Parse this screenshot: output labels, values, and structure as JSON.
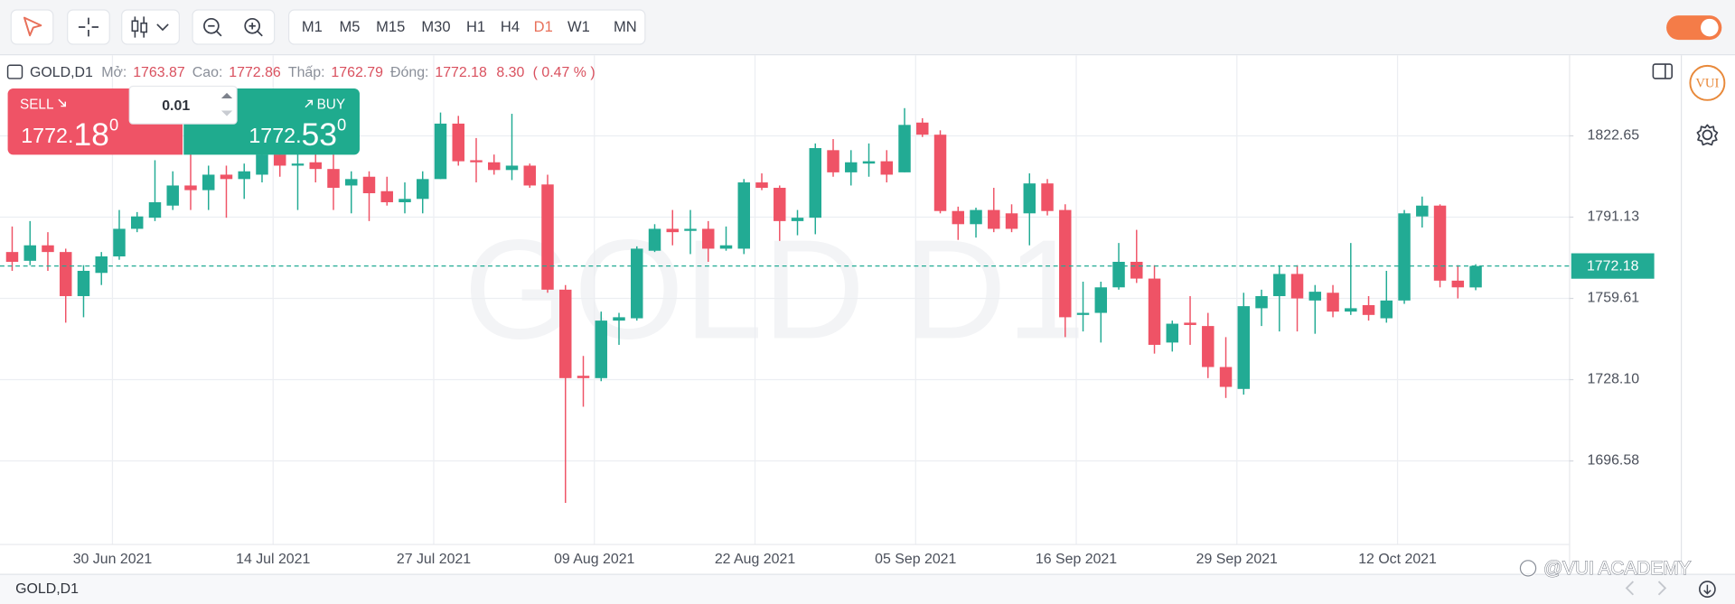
{
  "toolbar": {
    "timeframes": [
      "M1",
      "M5",
      "M15",
      "M30",
      "H1",
      "H4",
      "D1",
      "W1",
      "MN"
    ]
  },
  "header": {
    "symbol": "GOLD,D1",
    "open_label": "Mở:",
    "high_label": "Cao:",
    "low_label": "Thấp:",
    "close_label": "Đóng:",
    "change": "8.30",
    "change_pct": "( 0.47 % )"
  },
  "trade_panel": {
    "sell": "SELL",
    "buy": "BUY",
    "volume": "0.01",
    "sell_price": {
      "base": "1772.",
      "pips": "18",
      "fraction": "0"
    },
    "buy_price": {
      "base": "1772.",
      "pips": "53",
      "fraction": "0"
    }
  },
  "watermark": "GOLD D1",
  "logo": "VUI",
  "credit": "@VUI ACADEMY",
  "footer": {
    "symbol": "GOLD,D1"
  },
  "chart_data": {
    "type": "candlestick",
    "up_color": "#22ab94",
    "down_color": "#ef5366",
    "grid": true,
    "ylim": [
      1664.4,
      1853.9
    ],
    "yticks": [
      1822.65,
      1791.13,
      1759.61,
      {
        "value": 1728.1,
        "label": "1728.10"
      },
      1696.58
    ],
    "categories": [
      null,
      null,
      null,
      null,
      null,
      "30 Jun 2021",
      null,
      null,
      null,
      null,
      null,
      null,
      null,
      null,
      "14 Jul 2021",
      null,
      null,
      null,
      null,
      null,
      null,
      null,
      null,
      "27 Jul 2021",
      null,
      null,
      null,
      null,
      null,
      null,
      null,
      null,
      "09 Aug 2021",
      null,
      null,
      null,
      null,
      null,
      null,
      null,
      null,
      "22 Aug 2021",
      null,
      null,
      null,
      null,
      null,
      null,
      null,
      null,
      "05 Sep 2021",
      null,
      null,
      null,
      null,
      null,
      null,
      null,
      null,
      "16 Sep 2021",
      null,
      null,
      null,
      null,
      null,
      null,
      null,
      null,
      "29 Sep 2021",
      null,
      null,
      null,
      null,
      null,
      null,
      null,
      null,
      "12 Oct 2021",
      null,
      null,
      null,
      null,
      null
    ],
    "open": [
      1777.6,
      1774.2,
      1780.2,
      1777.6,
      1760.5,
      1769.5,
      1775.9,
      1786.6,
      1790.9,
      1795.6,
      1803.4,
      1801.6,
      1807.6,
      1805.9,
      1807.6,
      1815.4,
      1811.1,
      1812.4,
      1809.8,
      1803.4,
      1806.8,
      1801.2,
      1796.9,
      1798.2,
      1805.9,
      1827.4,
      1813.2,
      1812.4,
      1809.4,
      1811.1,
      1803.8,
      1763.0,
      1729.6,
      1728.7,
      1751.0,
      1751.9,
      1778.1,
      1786.6,
      1785.8,
      1786.6,
      1778.9,
      1778.9,
      1804.6,
      1802.5,
      1789.6,
      1790.9,
      1817.1,
      1808.5,
      1811.9,
      1812.8,
      1808.5,
      1827.8,
      1823.1,
      1793.5,
      1788.4,
      1793.9,
      1792.6,
      1792.6,
      1804.2,
      1793.9,
      1753.2,
      1754.0,
      1763.9,
      1773.8,
      1767.3,
      1742.5,
      1750.2,
      1748.9,
      1733.0,
      1724.5,
      1755.8,
      1760.5,
      1769.1,
      1758.8,
      1761.8,
      1754.5,
      1757.0,
      1751.9,
      1758.8,
      1791.4,
      1795.6,
      1766.5,
      1763.87
    ],
    "high": [
      1787.5,
      1789.6,
      1785.3,
      1778.9,
      1772.5,
      1777.6,
      1793.9,
      1793.1,
      1813.2,
      1808.9,
      1817.5,
      1811.1,
      1811.1,
      1811.9,
      1819.7,
      1819.7,
      1817.5,
      1819.7,
      1815.4,
      1808.9,
      1808.9,
      1806.8,
      1804.6,
      1808.9,
      1831.7,
      1830.4,
      1821.8,
      1815.4,
      1831.2,
      1811.9,
      1807.6,
      1764.8,
      1737.3,
      1754.5,
      1754.0,
      1779.8,
      1788.4,
      1793.9,
      1793.9,
      1789.6,
      1787.5,
      1805.9,
      1808.1,
      1803.4,
      1793.9,
      1819.7,
      1821.4,
      1817.1,
      1819.7,
      1817.1,
      1833.4,
      1829.5,
      1824.8,
      1795.2,
      1794.8,
      1802.5,
      1796.1,
      1808.1,
      1805.9,
      1796.1,
      1766.1,
      1766.1,
      1781.1,
      1786.2,
      1772.5,
      1751.0,
      1760.5,
      1754.0,
      1744.6,
      1761.8,
      1763.0,
      1772.5,
      1772.5,
      1764.8,
      1764.8,
      1781.1,
      1760.5,
      1770.3,
      1793.9,
      1799.1,
      1796.1,
      1772.5,
      1772.86
    ],
    "low": [
      1770.3,
      1772.5,
      1770.3,
      1750.2,
      1752.3,
      1764.8,
      1774.6,
      1785.3,
      1789.6,
      1793.9,
      1793.9,
      1793.9,
      1790.9,
      1798.2,
      1804.6,
      1806.8,
      1793.9,
      1804.6,
      1793.9,
      1792.6,
      1789.6,
      1795.6,
      1792.6,
      1792.6,
      1805.9,
      1811.1,
      1804.6,
      1807.6,
      1805.5,
      1802.5,
      1761.8,
      1680.3,
      1717.6,
      1727.5,
      1741.6,
      1751.0,
      1777.6,
      1780.2,
      1776.8,
      1773.8,
      1778.1,
      1776.8,
      1801.6,
      1781.9,
      1784.1,
      1784.5,
      1806.8,
      1803.4,
      1806.8,
      1804.6,
      1808.5,
      1822.2,
      1792.6,
      1782.3,
      1783.2,
      1785.3,
      1785.3,
      1780.2,
      1791.8,
      1744.6,
      1746.8,
      1742.5,
      1763.0,
      1765.6,
      1738.2,
      1739.0,
      1741.6,
      1728.7,
      1721.0,
      1722.3,
      1748.9,
      1746.8,
      1746.8,
      1745.9,
      1752.3,
      1753.2,
      1751.0,
      1750.2,
      1757.5,
      1787.1,
      1763.9,
      1759.6,
      1762.79
    ],
    "close": [
      1773.8,
      1780.2,
      1777.6,
      1760.5,
      1770.3,
      1775.9,
      1786.6,
      1791.4,
      1796.9,
      1803.4,
      1801.6,
      1807.6,
      1805.9,
      1808.9,
      1815.4,
      1811.1,
      1811.9,
      1809.8,
      1802.5,
      1805.9,
      1800.4,
      1796.9,
      1798.2,
      1805.9,
      1827.4,
      1812.8,
      1812.4,
      1809.4,
      1811.1,
      1803.4,
      1763.0,
      1728.7,
      1728.7,
      1751.0,
      1752.3,
      1778.9,
      1786.6,
      1785.3,
      1786.6,
      1778.9,
      1780.2,
      1804.6,
      1802.5,
      1789.6,
      1790.9,
      1817.9,
      1808.5,
      1812.4,
      1812.8,
      1807.6,
      1826.9,
      1823.1,
      1793.5,
      1788.4,
      1793.9,
      1786.6,
      1786.6,
      1804.2,
      1793.5,
      1752.3,
      1754.0,
      1763.9,
      1773.8,
      1767.3,
      1741.6,
      1749.8,
      1749.3,
      1733.0,
      1725.3,
      1756.6,
      1760.5,
      1769.1,
      1759.6,
      1762.2,
      1754.5,
      1755.8,
      1753.2,
      1758.8,
      1792.6,
      1795.6,
      1766.5,
      1763.9,
      1772.18
    ]
  }
}
